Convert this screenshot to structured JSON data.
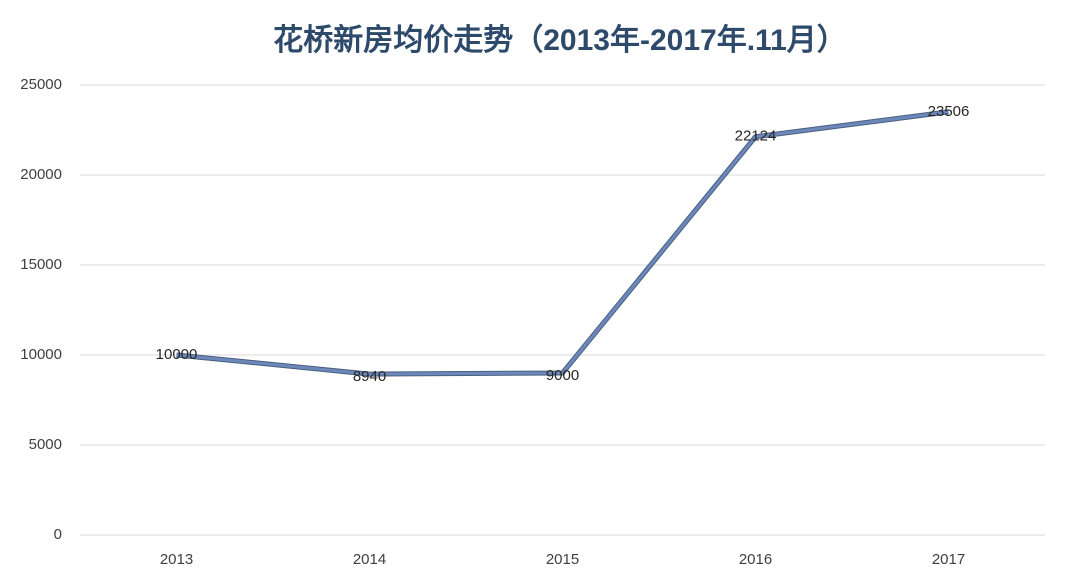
{
  "chart_data": {
    "type": "line",
    "title": "花桥新房均价走势（2013年-2017年.11月）",
    "categories": [
      "2013",
      "2014",
      "2015",
      "2016",
      "2017"
    ],
    "values": [
      10000,
      8940,
      9000,
      22124,
      23506
    ],
    "color": "#6c88ba",
    "ylim": [
      0,
      25000
    ],
    "yticks": [
      0,
      5000,
      10000,
      15000,
      20000,
      25000
    ],
    "grid": true,
    "data_labels": true
  }
}
